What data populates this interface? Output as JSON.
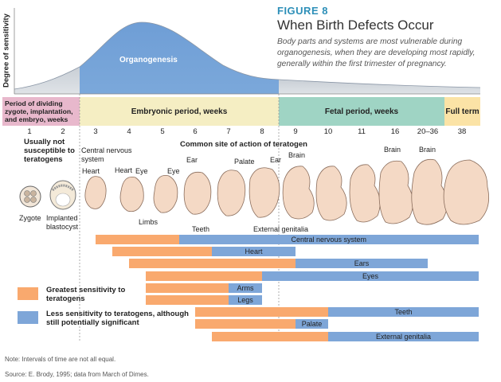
{
  "figure": {
    "label": "FIGURE 8",
    "title": "When Birth Defects Occur",
    "description": "Body parts and systems are most vulnerable during organogenesis, when they are developing most rapidly, generally within the first trimester of pregnancy."
  },
  "curve": {
    "y_axis_label": "Degree of sensitivity",
    "peak_label": "Organogenesis"
  },
  "periods": [
    {
      "label": "Period of dividing zygote, implantation, and embryo, weeks",
      "color": "#e8b8cc"
    },
    {
      "label": "Embryonic period, weeks",
      "color": "#f5eec3"
    },
    {
      "label": "Fetal period, weeks",
      "color": "#9fd4c4"
    },
    {
      "label": "Full term",
      "color": "#fbe3a6"
    }
  ],
  "weeks": [
    "1",
    "2",
    "3",
    "4",
    "5",
    "6",
    "7",
    "8",
    "9",
    "10",
    "11",
    "16",
    "20–36",
    "38"
  ],
  "annotations": {
    "not_susceptible": "Usually not susceptible to teratogens",
    "common_site": "Common site of action of teratogen",
    "zygote": "Zygote",
    "implanted": "Implanted blastocyst",
    "cns": "Central nervous system",
    "heart1": "Heart",
    "heart2": "Heart",
    "eye1": "Eye",
    "eye2": "Eye",
    "limbs": "Limbs",
    "ear1": "Ear",
    "ear2": "Ear",
    "palate": "Palate",
    "teeth": "Teeth",
    "brain1": "Brain",
    "brain2": "Brain",
    "brain3": "Brain",
    "external_genitalia": "External genitalia"
  },
  "bars": [
    {
      "name": "Central nervous system",
      "high_start": 3,
      "high_end": 5.5,
      "low_end": 38
    },
    {
      "name": "Heart",
      "high_start": 3.5,
      "high_end": 6.5,
      "low_end": 9
    },
    {
      "name": "Ears",
      "high_start": 4,
      "high_end": 9,
      "low_end": 20
    },
    {
      "name": "Eyes",
      "high_start": 4.5,
      "high_end": 8,
      "low_end": 38
    },
    {
      "name": "Arms",
      "high_start": 4.5,
      "high_end": 7,
      "low_end": 8
    },
    {
      "name": "Legs",
      "high_start": 4.5,
      "high_end": 7,
      "low_end": 8
    },
    {
      "name": "Teeth",
      "high_start": 6,
      "high_end": 10,
      "low_end": 38
    },
    {
      "name": "Palate",
      "high_start": 6,
      "high_end": 9,
      "low_end": 10
    },
    {
      "name": "External genitalia",
      "high_start": 6.5,
      "high_end": 10,
      "low_end": 38
    }
  ],
  "legend": {
    "high": "Greatest sensitivity to teratogens",
    "low": "Less sensitivity to teratogens, although still potentially significant",
    "high_color": "#f9a96e",
    "low_color": "#7ea6d8"
  },
  "notes": {
    "note": "Note: Intervals of time are not all equal.",
    "source": "Source: E. Brody, 1995; data from March of Dimes."
  }
}
